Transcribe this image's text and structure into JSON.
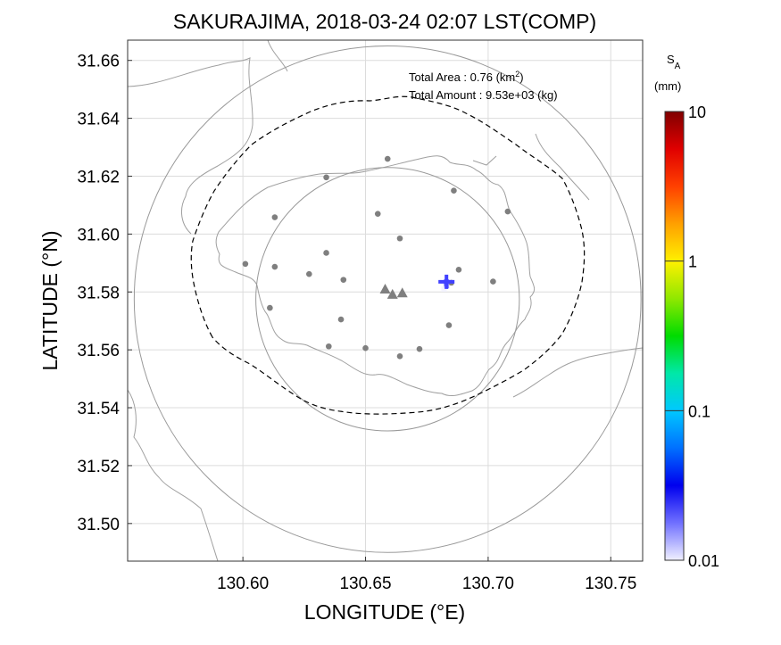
{
  "chart_data": {
    "type": "map",
    "title": "SAKURAJIMA, 2018-03-24 02:07 LST(COMP)",
    "xlabel": "LONGITUDE (°E)",
    "ylabel": "LATITUDE (°N)",
    "xlim": [
      130.553,
      130.763
    ],
    "ylim": [
      31.487,
      31.667
    ],
    "xticks": [
      130.6,
      130.65,
      130.7,
      130.75
    ],
    "xtick_labels": [
      "130.60",
      "130.65",
      "130.70",
      "130.75"
    ],
    "yticks": [
      31.5,
      31.52,
      31.54,
      31.56,
      31.58,
      31.6,
      31.62,
      31.64,
      31.66
    ],
    "ytick_labels": [
      "31.50",
      "31.52",
      "31.54",
      "31.56",
      "31.58",
      "31.60",
      "31.62",
      "31.64",
      "31.66"
    ],
    "grid": true,
    "annotation": {
      "area_label": "Total Area   : 0.76 (km",
      "area_exp": "2",
      "area_close": ")",
      "amount_label": "Total Amount : 9.53e+03 (kg)"
    },
    "colorbar": {
      "label_main": "S",
      "label_sub": "A",
      "unit": "(mm)",
      "scale": "log",
      "range": [
        0.01,
        10
      ],
      "ticks": [
        0.01,
        0.1,
        1,
        10
      ],
      "tick_labels": [
        "0.01",
        "0.1",
        "1",
        "10"
      ],
      "colors": [
        "#f0f0ff",
        "#7070ff",
        "#0000ee",
        "#0070ff",
        "#00c8ff",
        "#00e8a8",
        "#00dc00",
        "#90e800",
        "#fff000",
        "#ffa000",
        "#ff4000",
        "#e00000",
        "#800000"
      ]
    },
    "vents": [
      {
        "lon": 130.658,
        "lat": 31.581
      },
      {
        "lon": 130.661,
        "lat": 31.5792
      },
      {
        "lon": 130.665,
        "lat": 31.5797
      }
    ],
    "stations": [
      {
        "lon": 130.659,
        "lat": 31.626
      },
      {
        "lon": 130.634,
        "lat": 31.6196
      },
      {
        "lon": 130.686,
        "lat": 31.615
      },
      {
        "lon": 130.655,
        "lat": 31.607
      },
      {
        "lon": 130.613,
        "lat": 31.6058
      },
      {
        "lon": 130.708,
        "lat": 31.6078
      },
      {
        "lon": 130.664,
        "lat": 31.5985
      },
      {
        "lon": 130.634,
        "lat": 31.5935
      },
      {
        "lon": 130.601,
        "lat": 31.5897
      },
      {
        "lon": 130.613,
        "lat": 31.5887
      },
      {
        "lon": 130.688,
        "lat": 31.5877
      },
      {
        "lon": 130.627,
        "lat": 31.5862
      },
      {
        "lon": 130.641,
        "lat": 31.5842
      },
      {
        "lon": 130.702,
        "lat": 31.5836
      },
      {
        "lon": 130.685,
        "lat": 31.5832
      },
      {
        "lon": 130.611,
        "lat": 31.5745
      },
      {
        "lon": 130.64,
        "lat": 31.5705
      },
      {
        "lon": 130.684,
        "lat": 31.5685
      },
      {
        "lon": 130.635,
        "lat": 31.5612
      },
      {
        "lon": 130.65,
        "lat": 31.5606
      },
      {
        "lon": 130.672,
        "lat": 31.5603
      },
      {
        "lon": 130.664,
        "lat": 31.5578
      }
    ],
    "deposit": [
      {
        "lon": 130.683,
        "lat": 31.5835,
        "value": 0.02
      },
      {
        "lon": 130.683,
        "lat": 31.5822,
        "value": 0.015
      },
      {
        "lon": 130.682,
        "lat": 31.581,
        "value": 0.012
      }
    ],
    "circles": [
      {
        "lon": 130.659,
        "lat": 31.5775,
        "radius_deg_lat": 0.0455
      },
      {
        "lon": 130.659,
        "lat": 31.5775,
        "radius_deg_lat": 0.0875
      }
    ],
    "colors": {
      "coast": "#a0a0a0",
      "grid": "#dcdcdc",
      "circle": "#999999",
      "marker": "#7f7f7f",
      "plus": "#4040ff",
      "dashed": "#000000"
    }
  }
}
